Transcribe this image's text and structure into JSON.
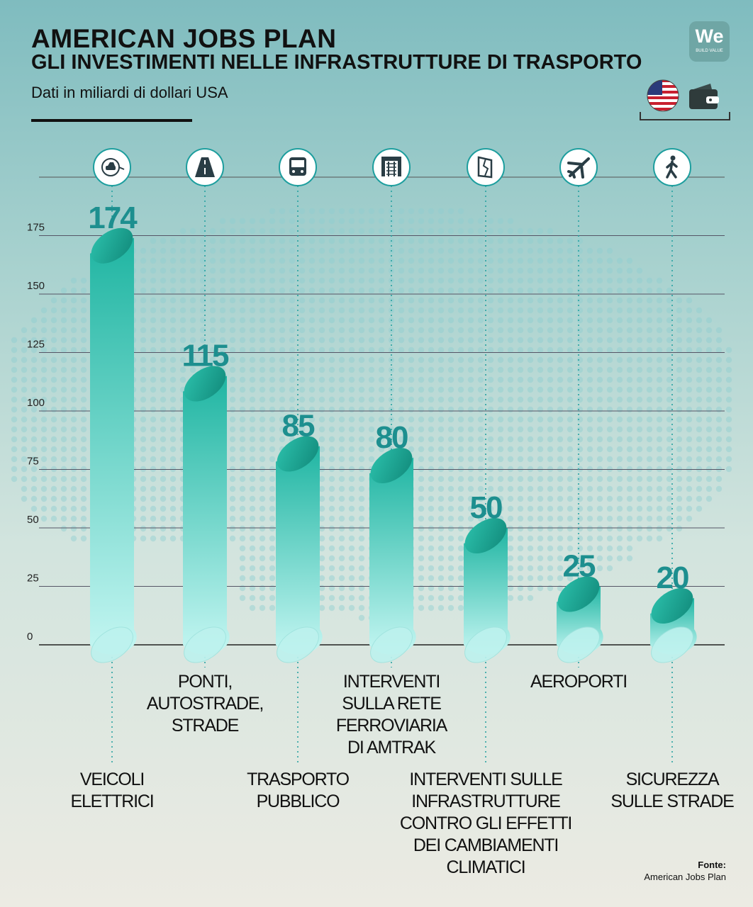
{
  "header": {
    "title": "AMERICAN JOBS PLAN",
    "subtitle": "GLI INVESTIMENTI NELLE INFRASTRUTTURE DI TRASPORTO",
    "unit": "Dati in miliardi di dollari USA"
  },
  "logo": {
    "text": "We",
    "tagline": "BUILD VALUE"
  },
  "source": {
    "title": "Fonte:",
    "text": "American Jobs Plan"
  },
  "colors": {
    "bar_top": "#1fb5a2",
    "bar_bottom": "#bff4f0",
    "cap": "#1a9c88",
    "value_text": "#1d8f8f",
    "dot": "#8ecfd0"
  },
  "chart_data": {
    "type": "bar",
    "ylim": [
      0,
      175
    ],
    "yticks": [
      "0",
      "25",
      "50",
      "75",
      "100",
      "125",
      "150",
      "175"
    ],
    "grid": true,
    "legend": "none",
    "categories": [
      {
        "lines": [
          "VEICOLI",
          "ELETTRICI"
        ],
        "icon": "electric-car-icon"
      },
      {
        "lines": [
          "PONTI,",
          "AUTOSTRADE,",
          "STRADE"
        ],
        "icon": "highway-icon"
      },
      {
        "lines": [
          "TRASPORTO",
          "PUBBLICO"
        ],
        "icon": "bus-icon"
      },
      {
        "lines": [
          "INTERVENTI",
          "SULLA RETE",
          "FERROVIARIA",
          "DI AMTRAK"
        ],
        "icon": "railway-icon"
      },
      {
        "lines": [
          "INTERVENTI SULLE",
          "INFRASTRUTTURE",
          "CONTRO GLI EFFETTI",
          "DEI CAMBIAMENTI",
          "CLIMATICI"
        ],
        "icon": "climate-damage-icon"
      },
      {
        "lines": [
          "AEROPORTI"
        ],
        "icon": "airplane-icon"
      },
      {
        "lines": [
          "SICUREZZA",
          "SULLE STRADE"
        ],
        "icon": "pedestrian-icon"
      }
    ],
    "values": [
      174,
      115,
      85,
      80,
      50,
      25,
      20
    ],
    "value_labels": [
      "174",
      "115",
      "85",
      "80",
      "50",
      "25",
      "20"
    ]
  }
}
